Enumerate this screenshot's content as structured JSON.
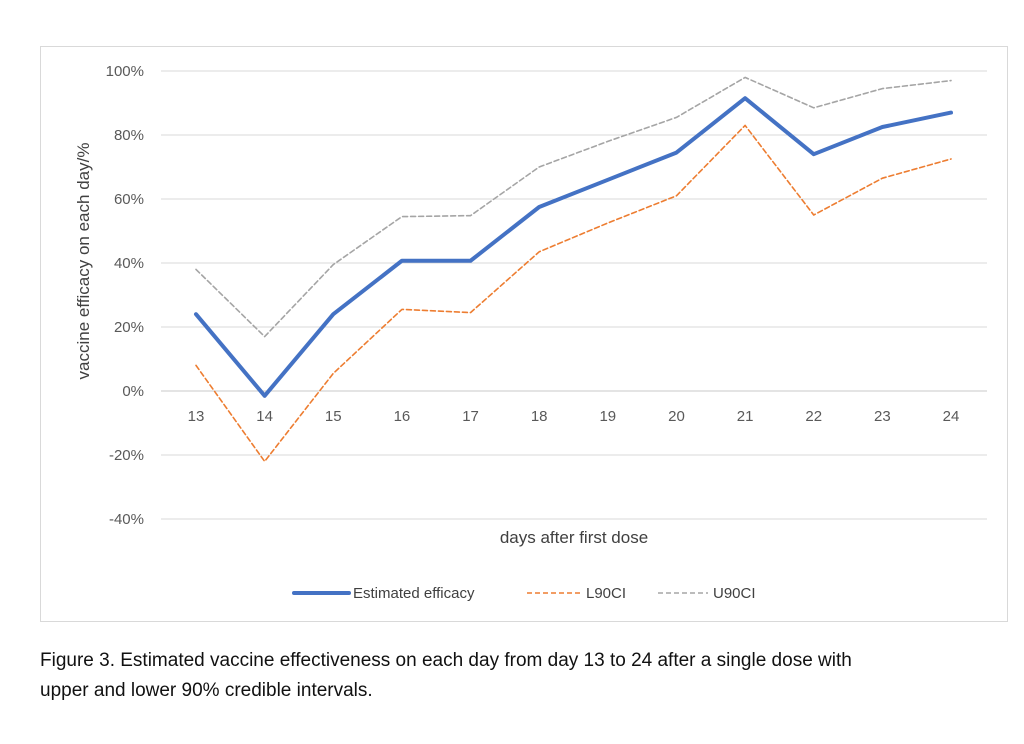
{
  "chart_data": {
    "type": "line",
    "title": "",
    "xlabel": "days after first dose",
    "ylabel": "vaccine efficacy on each day/%",
    "categories": [
      "13",
      "14",
      "15",
      "16",
      "17",
      "18",
      "19",
      "20",
      "21",
      "22",
      "23",
      "24"
    ],
    "ylim": [
      -40,
      100
    ],
    "yticks": [
      -40,
      -20,
      0,
      20,
      40,
      60,
      80,
      100
    ],
    "ytick_labels": [
      "-40%",
      "-20%",
      "0%",
      "20%",
      "40%",
      "60%",
      "80%",
      "100%"
    ],
    "grid": true,
    "legend_position": "bottom",
    "series": [
      {
        "name": "Estimated efficacy",
        "values": [
          24,
          -1.5,
          24,
          40.7,
          40.7,
          57.5,
          66,
          74.5,
          91.5,
          74,
          82.5,
          87
        ],
        "color": "#4472C4",
        "style": "solid"
      },
      {
        "name": "L90CI",
        "values": [
          8,
          -22,
          5.5,
          25.5,
          24.5,
          43.5,
          52.5,
          61,
          83,
          55,
          66.5,
          72.5
        ],
        "color": "#ED7D31",
        "style": "dashed"
      },
      {
        "name": "U90CI",
        "values": [
          38,
          17,
          39.5,
          54.5,
          54.8,
          70,
          78,
          85.5,
          98,
          88.5,
          94.5,
          97
        ],
        "color": "#A5A5A5",
        "style": "dashed"
      }
    ]
  },
  "caption": {
    "line1": "Figure 3. Estimated vaccine effectiveness on each day from day 13 to 24 after a single dose with",
    "line2": "upper and lower 90% credible intervals."
  }
}
